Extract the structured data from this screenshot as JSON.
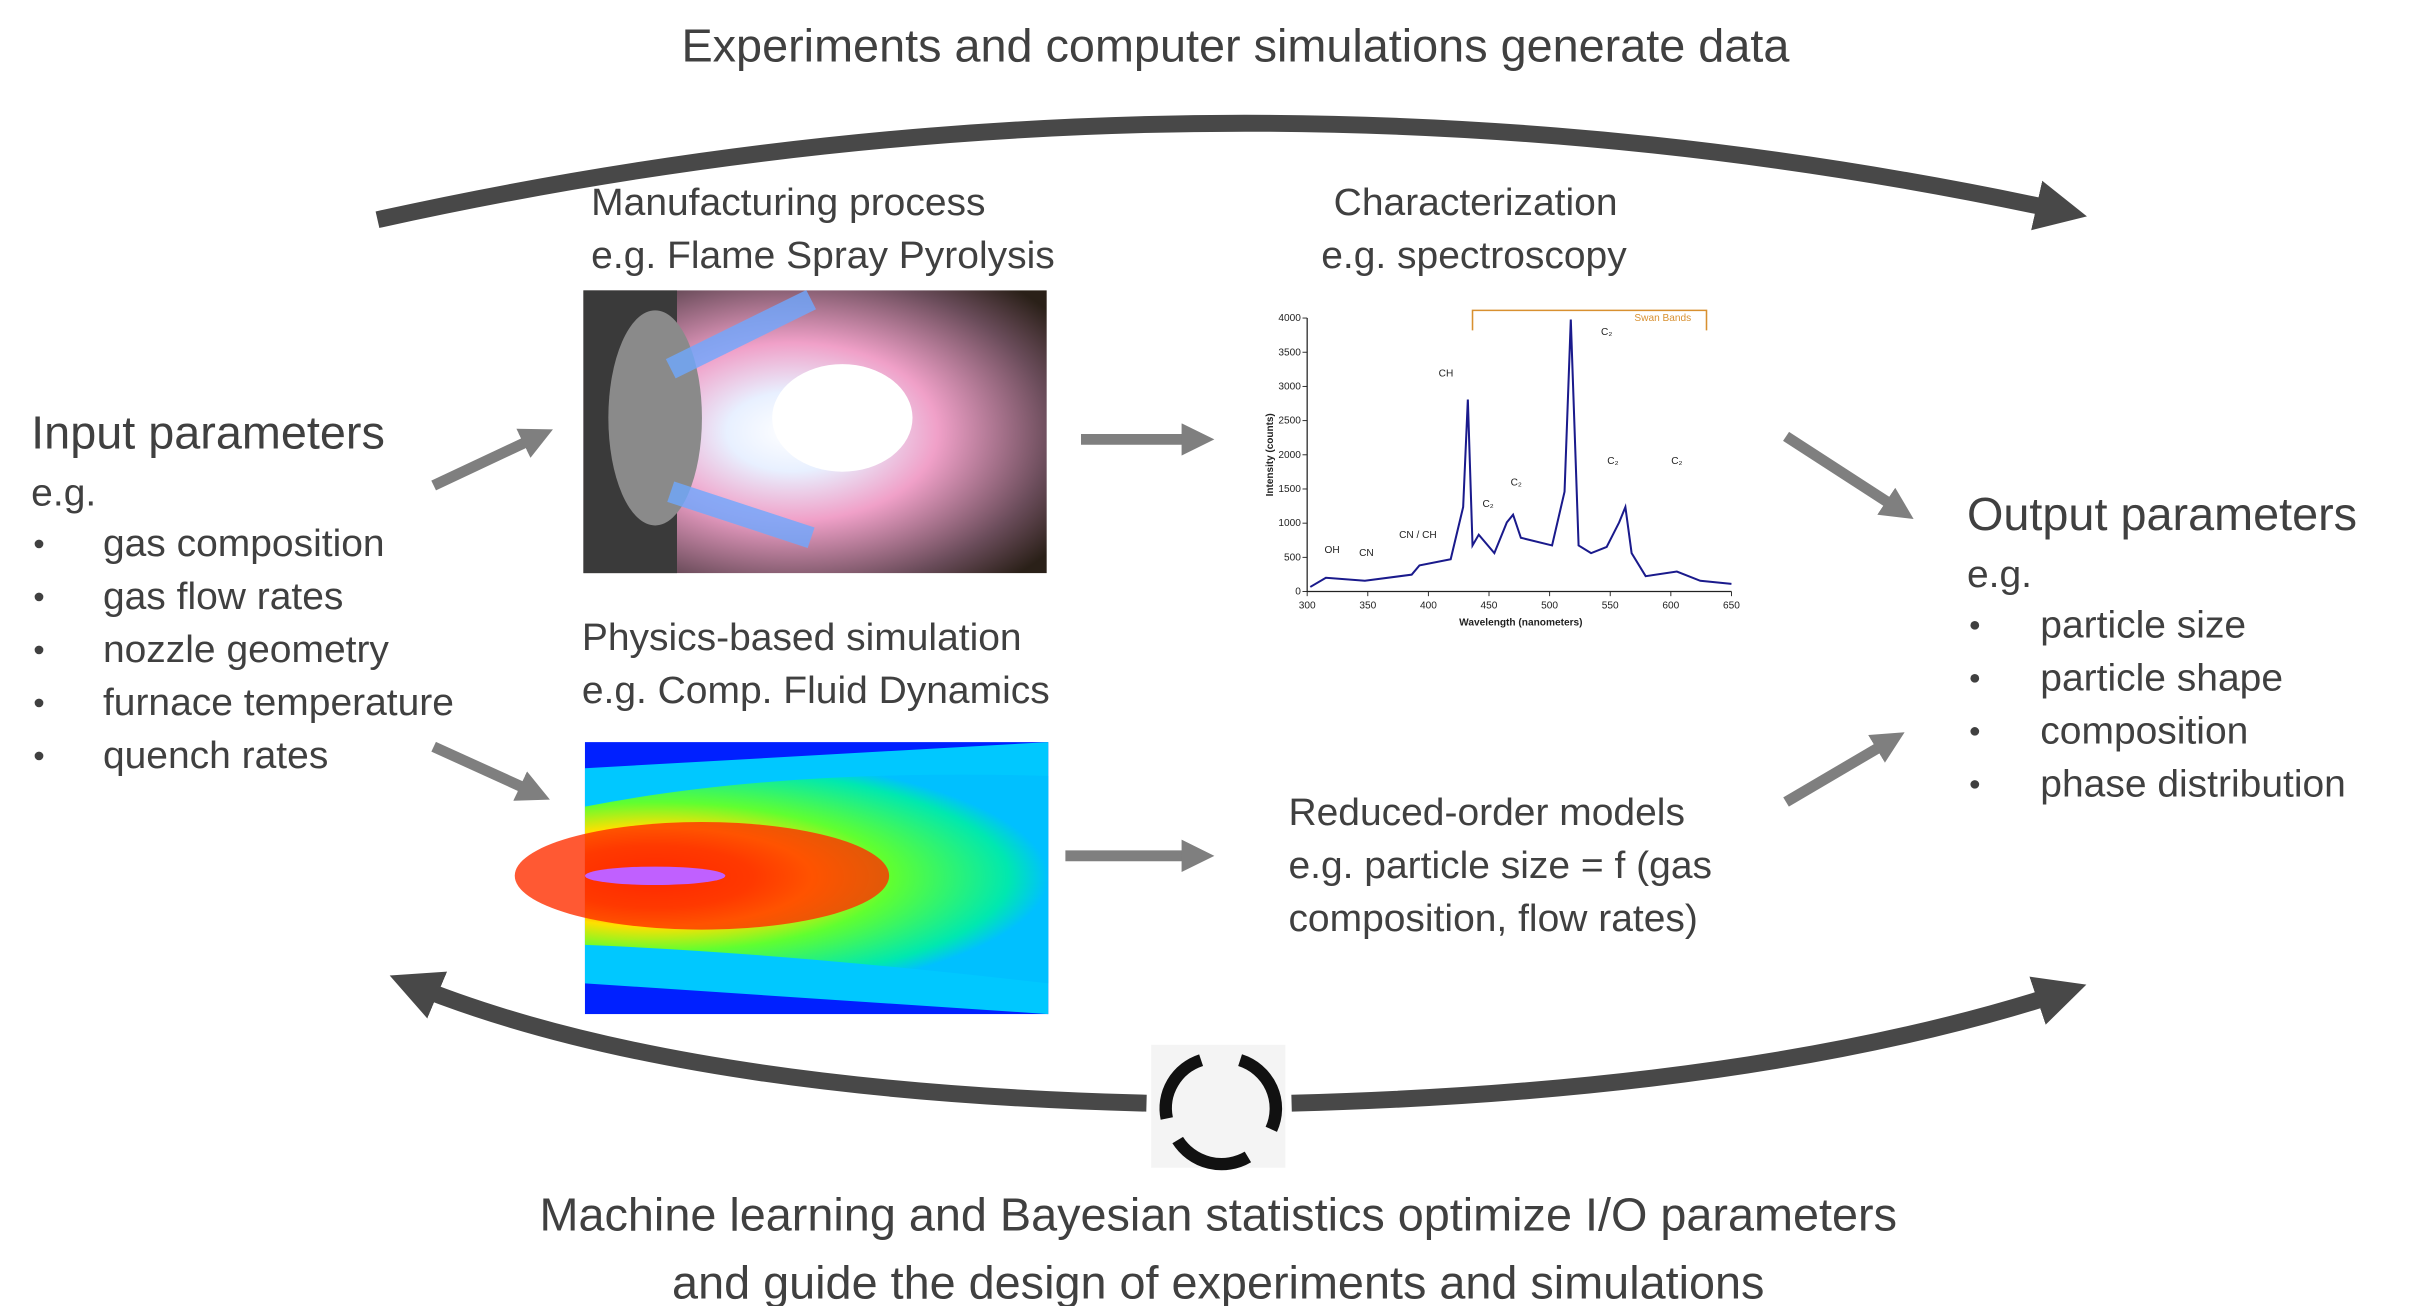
{
  "title": "Experiments and computer simulations generate data",
  "input": {
    "heading": "Input parameters",
    "eg": "e.g.",
    "items": [
      "gas composition",
      "gas flow rates",
      "nozzle geometry",
      "furnace temperature",
      "quench rates"
    ]
  },
  "manufacturing": {
    "lines": [
      "Manufacturing process",
      "e.g. Flame Spray Pyrolysis"
    ]
  },
  "characterization": {
    "lines": [
      "Characterization",
      "e.g. spectroscopy"
    ],
    "spectrum": {
      "y_label": "Intensity (counts)",
      "x_label": "Wavelength (nanometers)",
      "yticks": [
        0,
        500,
        1000,
        1500,
        2000,
        2500,
        3000,
        3500,
        4000
      ],
      "xticks": [
        300,
        350,
        400,
        450,
        500,
        550,
        600,
        650
      ],
      "annotations": [
        "OH",
        "CN",
        "CN / CH",
        "CH",
        "C₂",
        "C₂",
        "C₂",
        "C₂",
        "C₂",
        "Swan Bands"
      ]
    }
  },
  "simulation": {
    "lines": [
      "Physics-based simulation",
      "e.g. Comp. Fluid Dynamics"
    ]
  },
  "reduced_order": {
    "lines": [
      "Reduced-order models",
      "e.g. particle size = f (gas",
      "composition, flow rates)"
    ]
  },
  "output": {
    "heading": "Output parameters",
    "eg": "e.g.",
    "items": [
      "particle size",
      "particle shape",
      "composition",
      "phase distribution"
    ]
  },
  "caption": {
    "lines": [
      "Machine learning and Bayesian statistics optimize I/O parameters",
      "and guide the design of experiments and simulations"
    ]
  }
}
